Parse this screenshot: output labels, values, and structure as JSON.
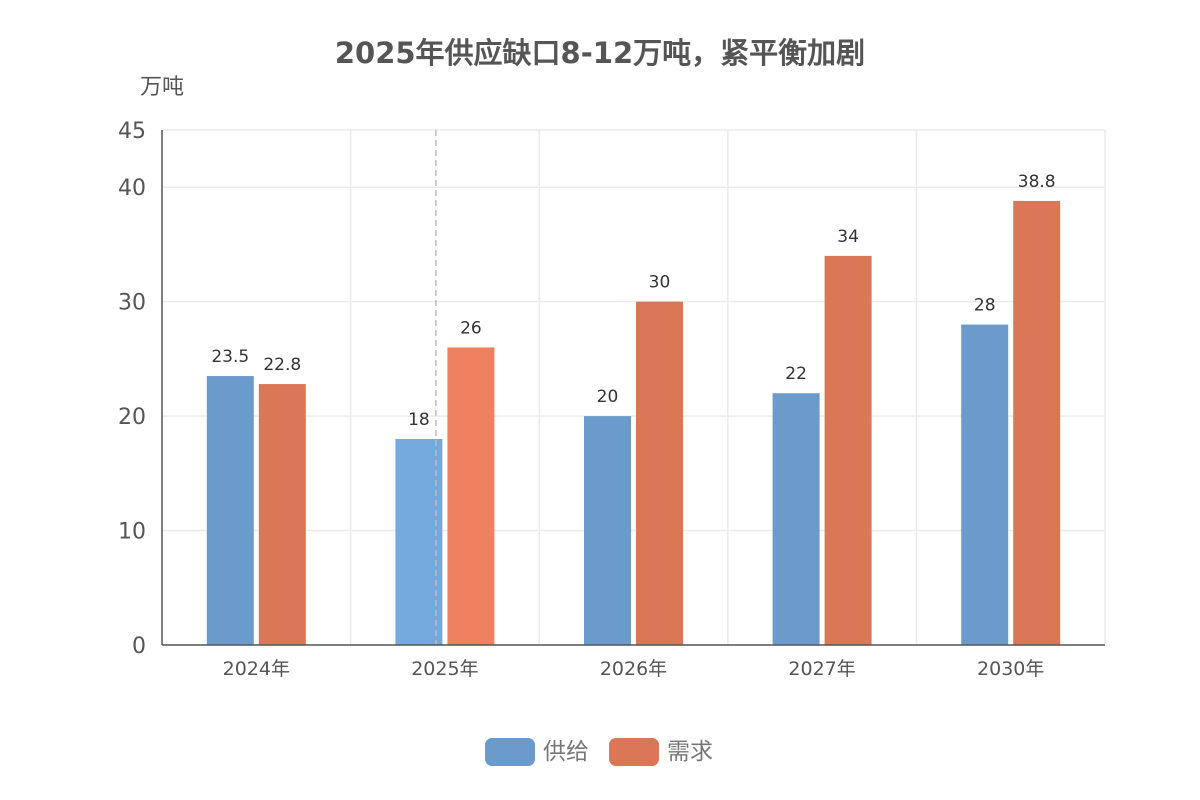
{
  "chart_data": {
    "type": "bar",
    "title": "2025年供应缺口8-12万吨，紧平衡加剧",
    "ylabel": "万吨",
    "categories": [
      "2024年",
      "2025年",
      "2026年",
      "2027年",
      "2030年"
    ],
    "series": [
      {
        "name": "供给",
        "color": "#6a9bcb",
        "values": [
          23.5,
          18,
          20,
          22,
          28
        ]
      },
      {
        "name": "需求",
        "color": "#d97756",
        "values": [
          22.8,
          26,
          30,
          34,
          38.8
        ]
      }
    ],
    "ylim": [
      0,
      45
    ],
    "yticks": [
      0,
      10,
      20,
      30,
      40,
      45
    ],
    "highlight_category": "2025年",
    "highlight_colors": {
      "供给": "#74a9dd",
      "需求": "#ee8160"
    },
    "grid": true,
    "legend_position": "bottom"
  }
}
